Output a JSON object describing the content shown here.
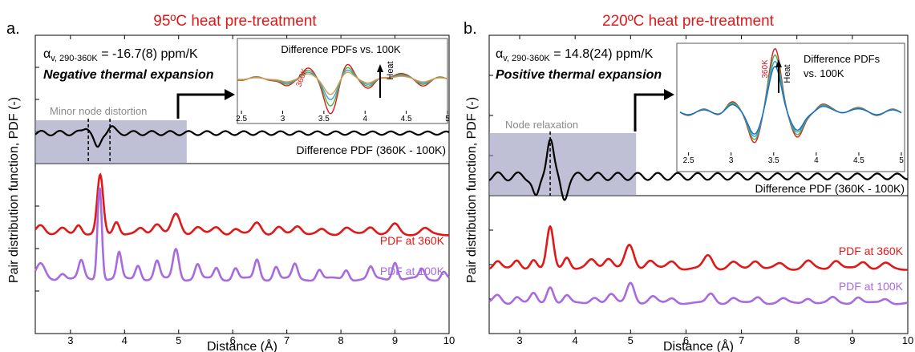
{
  "panels": [
    {
      "letter": "a.",
      "title": "95ºC heat pre-treatment",
      "alpha_prefix": "α",
      "alpha_sub": "v, 290-360K",
      "alpha_value": " = -16.7(8) ppm/K",
      "expansion_label": "Negative thermal expansion",
      "region_label": "Minor node distortion",
      "diff_label": "Difference PDF (360K - 100K)",
      "series_labels": {
        "hot": "PDF at 360K",
        "cold": "PDF at 100K"
      },
      "inset": {
        "title_lines": [
          "Difference PDFs vs. 100K"
        ],
        "temp_label": "360K",
        "heat_label": "Heat"
      }
    },
    {
      "letter": "b.",
      "title": "220ºC heat pre-treatment",
      "alpha_prefix": "α",
      "alpha_sub": "v, 290-360K",
      "alpha_value": " = 14.8(24) ppm/K",
      "expansion_label": "Positive thermal expansion",
      "region_label": "Node relaxation",
      "diff_label": "Difference PDF (360K - 100K)",
      "series_labels": {
        "hot": "PDF at 360K",
        "cold": "PDF at 100K"
      },
      "inset": {
        "title_lines": [
          "Difference PDFs",
          "vs. 100K"
        ],
        "temp_label": "360K",
        "heat_label": "Heat"
      }
    }
  ],
  "chart_data": [
    {
      "type": "line",
      "panel": "a",
      "title": "95ºC heat pre-treatment",
      "xlabel": "Distance (Å)",
      "ylabel": "Pair distribution function, PDF (-)",
      "xlim": [
        2.35,
        10
      ],
      "xticks": [
        3,
        4,
        5,
        6,
        7,
        8,
        9,
        10
      ],
      "peaks": {
        "hot": [
          [
            2.45,
            0.45,
            0.08
          ],
          [
            2.85,
            0.25,
            0.07
          ],
          [
            3.15,
            0.45,
            0.06
          ],
          [
            3.55,
            2.7,
            0.055
          ],
          [
            3.85,
            0.6,
            0.055
          ],
          [
            4.3,
            0.25,
            0.07
          ],
          [
            4.6,
            0.5,
            0.08
          ],
          [
            4.95,
            0.9,
            0.08
          ],
          [
            5.35,
            0.35,
            0.08
          ],
          [
            5.7,
            0.3,
            0.08
          ],
          [
            6.05,
            0.25,
            0.07
          ],
          [
            6.45,
            0.55,
            0.08
          ],
          [
            6.85,
            0.3,
            0.07
          ],
          [
            7.2,
            0.4,
            0.08
          ],
          [
            7.65,
            0.2,
            0.07
          ],
          [
            8.1,
            0.3,
            0.08
          ],
          [
            8.55,
            0.35,
            0.08
          ],
          [
            9.0,
            0.45,
            0.08
          ],
          [
            9.55,
            0.25,
            0.08
          ]
        ],
        "cold": [
          [
            2.45,
            0.45,
            0.08
          ],
          [
            2.85,
            0.2,
            0.06
          ],
          [
            3.2,
            0.55,
            0.05
          ],
          [
            3.54,
            2.9,
            0.04
          ],
          [
            3.9,
            0.8,
            0.045
          ],
          [
            4.25,
            0.45,
            0.05
          ],
          [
            4.6,
            0.55,
            0.05
          ],
          [
            4.95,
            0.95,
            0.055
          ],
          [
            5.35,
            0.45,
            0.05
          ],
          [
            5.7,
            0.35,
            0.05
          ],
          [
            6.05,
            0.35,
            0.05
          ],
          [
            6.45,
            0.6,
            0.05
          ],
          [
            6.8,
            0.4,
            0.05
          ],
          [
            7.15,
            0.45,
            0.05
          ],
          [
            7.6,
            0.3,
            0.05
          ],
          [
            8.1,
            0.3,
            0.05
          ],
          [
            8.55,
            0.35,
            0.05
          ],
          [
            9.0,
            0.55,
            0.05
          ],
          [
            9.5,
            0.3,
            0.05
          ],
          [
            9.9,
            0.25,
            0.05
          ]
        ]
      },
      "series": [
        {
          "name": "PDF at 360K",
          "color": "#e01818"
        },
        {
          "name": "PDF at 100K",
          "color": "#a86ae0"
        }
      ],
      "difference": {
        "name": "Difference PDF (360K - 100K)",
        "color": "#000000",
        "features": [
          [
            3.5,
            -0.9,
            0.06
          ],
          [
            3.3,
            0.35,
            0.06
          ],
          [
            3.75,
            0.35,
            0.06
          ]
        ],
        "residual_amp": 0.13,
        "residual_period": 0.34
      },
      "markers_x": [
        3.33,
        3.73
      ],
      "region_x": [
        2.35,
        5.15
      ],
      "inset": {
        "xlim": [
          2.45,
          5.0
        ],
        "xticks": [
          2.5,
          3,
          3.5,
          4,
          4.5,
          5
        ],
        "series": [
          {
            "color": "#e01818",
            "scale": 1.0
          },
          {
            "color": "#4ab04a",
            "scale": 0.78
          },
          {
            "color": "#3aa0e0",
            "scale": 0.6
          },
          {
            "color": "#e09a40",
            "scale": 0.45
          }
        ],
        "features": [
          [
            3.58,
            -1.5,
            0.08
          ],
          [
            3.3,
            0.5,
            0.07
          ],
          [
            3.78,
            0.6,
            0.07
          ],
          [
            3.05,
            -0.4,
            0.07
          ],
          [
            4.05,
            -0.4,
            0.07
          ],
          [
            4.4,
            0.25,
            0.08
          ],
          [
            4.7,
            -0.25,
            0.08
          ]
        ]
      }
    },
    {
      "type": "line",
      "panel": "b",
      "title": "220ºC heat pre-treatment",
      "xlabel": "Distance (Å)",
      "ylabel": "Pair distribution function, PDF (-)",
      "xlim": [
        2.45,
        10
      ],
      "xticks": [
        3,
        4,
        5,
        6,
        7,
        8,
        9,
        10
      ],
      "peaks": {
        "hot": [
          [
            2.6,
            0.35,
            0.07
          ],
          [
            2.95,
            0.3,
            0.06
          ],
          [
            3.25,
            0.4,
            0.06
          ],
          [
            3.55,
            1.7,
            0.06
          ],
          [
            3.85,
            0.5,
            0.06
          ],
          [
            4.3,
            0.35,
            0.08
          ],
          [
            4.6,
            0.45,
            0.08
          ],
          [
            4.98,
            0.95,
            0.08
          ],
          [
            5.35,
            0.35,
            0.08
          ],
          [
            5.75,
            0.3,
            0.08
          ],
          [
            6.4,
            0.55,
            0.08
          ],
          [
            6.85,
            0.25,
            0.08
          ],
          [
            7.25,
            0.35,
            0.08
          ],
          [
            7.7,
            0.2,
            0.08
          ],
          [
            8.2,
            0.3,
            0.08
          ],
          [
            8.7,
            0.35,
            0.08
          ],
          [
            9.2,
            0.3,
            0.08
          ],
          [
            9.6,
            0.2,
            0.08
          ]
        ],
        "cold": [
          [
            2.6,
            0.4,
            0.07
          ],
          [
            2.95,
            0.3,
            0.06
          ],
          [
            3.25,
            0.45,
            0.06
          ],
          [
            3.55,
            0.8,
            0.06
          ],
          [
            3.85,
            0.35,
            0.06
          ],
          [
            4.35,
            0.3,
            0.07
          ],
          [
            4.65,
            0.4,
            0.07
          ],
          [
            5.0,
            1.0,
            0.07
          ],
          [
            5.4,
            0.3,
            0.07
          ],
          [
            5.75,
            0.25,
            0.07
          ],
          [
            6.45,
            0.45,
            0.07
          ],
          [
            6.85,
            0.25,
            0.07
          ],
          [
            7.3,
            0.3,
            0.07
          ],
          [
            7.75,
            0.2,
            0.07
          ],
          [
            8.2,
            0.25,
            0.07
          ],
          [
            8.65,
            0.25,
            0.07
          ],
          [
            9.1,
            0.3,
            0.07
          ],
          [
            9.6,
            0.2,
            0.07
          ]
        ]
      },
      "series": [
        {
          "name": "PDF at 360K",
          "color": "#e01818"
        },
        {
          "name": "PDF at 100K",
          "color": "#a86ae0"
        }
      ],
      "difference": {
        "name": "Difference PDF (360K - 100K)",
        "color": "#000000",
        "features": [
          [
            3.55,
            1.0,
            0.06
          ],
          [
            3.3,
            -0.55,
            0.06
          ],
          [
            3.8,
            -0.55,
            0.06
          ]
        ],
        "residual_amp": 0.1,
        "residual_period": 0.36
      },
      "markers_x": [
        3.55
      ],
      "region_x": [
        2.45,
        5.1
      ],
      "inset": {
        "xlim": [
          2.4,
          5.0
        ],
        "xticks": [
          2.5,
          3,
          3.5,
          4,
          4.5,
          5
        ],
        "series": [
          {
            "color": "#e01818",
            "scale": 1.0
          },
          {
            "color": "#4ab04a",
            "scale": 0.9
          },
          {
            "color": "#3aa0e0",
            "scale": 0.8
          },
          {
            "color": "#1070c0",
            "scale": 0.72
          }
        ],
        "features": [
          [
            3.52,
            1.6,
            0.07
          ],
          [
            3.28,
            -0.7,
            0.07
          ],
          [
            3.78,
            -0.7,
            0.07
          ],
          [
            3.0,
            0.2,
            0.07
          ],
          [
            4.05,
            0.2,
            0.07
          ],
          [
            4.4,
            0.1,
            0.08
          ]
        ]
      }
    }
  ]
}
